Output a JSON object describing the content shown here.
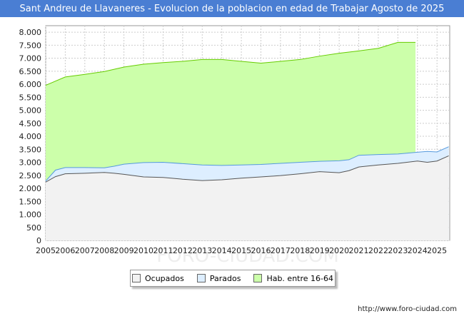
{
  "chart_data": {
    "type": "area",
    "title": "Sant Andreu de Llavaneres - Evolucion de la poblacion en edad de Trabajar Agosto de 2025",
    "xlabel": "",
    "ylabel": "",
    "ylim": [
      0,
      8250
    ],
    "xlim": [
      2005,
      2025.65
    ],
    "y_ticks": [
      0,
      500,
      1000,
      1500,
      2000,
      2500,
      3000,
      3500,
      4000,
      4500,
      5000,
      5500,
      6000,
      6500,
      7000,
      7500,
      8000
    ],
    "y_tick_labels": [
      "0",
      "500",
      "1.000",
      "1.500",
      "2.000",
      "2.500",
      "3.000",
      "3.500",
      "4.000",
      "4.500",
      "5.000",
      "5.500",
      "6.000",
      "6.500",
      "7.000",
      "7.500",
      "8.000"
    ],
    "x_ticks": [
      2005,
      2006,
      2007,
      2008,
      2009,
      2010,
      2011,
      2012,
      2013,
      2014,
      2015,
      2016,
      2017,
      2018,
      2019,
      2020,
      2021,
      2022,
      2023,
      2024,
      2025
    ],
    "x_tick_labels": [
      "2005",
      "2006",
      "2007",
      "2008",
      "2009",
      "2010",
      "2011",
      "2012",
      "2013",
      "2014",
      "2015",
      "2016",
      "2017",
      "2018",
      "2019",
      "2020",
      "2021",
      "2022",
      "2023",
      "2024",
      "2025"
    ],
    "grid": true,
    "legend_position": "bottom",
    "series": [
      {
        "name": "Hab. entre 16-64",
        "color": "#ccffaa",
        "stroke": "#66cc00",
        "x": [
          2005,
          2006,
          2007,
          2008,
          2009,
          2010,
          2011,
          2012,
          2013,
          2014,
          2015,
          2016,
          2017,
          2018,
          2019,
          2020,
          2021,
          2022,
          2023,
          2023.9
        ],
        "values": [
          5960,
          6280,
          6380,
          6490,
          6660,
          6770,
          6830,
          6880,
          6950,
          6950,
          6880,
          6810,
          6880,
          6950,
          7080,
          7190,
          7280,
          7380,
          7610,
          7610
        ]
      },
      {
        "name": "Parados",
        "color": "#ddeeff",
        "stroke": "#5599dd",
        "x": [
          2005,
          2005.5,
          2006,
          2007,
          2008,
          2008.5,
          2009,
          2010,
          2011,
          2012,
          2013,
          2014,
          2015,
          2016,
          2017,
          2018,
          2019,
          2020,
          2020.5,
          2021,
          2022,
          2023,
          2024,
          2024.5,
          2025,
          2025.6
        ],
        "values": [
          2280,
          2700,
          2800,
          2800,
          2790,
          2850,
          2930,
          2990,
          3000,
          2950,
          2900,
          2880,
          2900,
          2920,
          2960,
          3000,
          3040,
          3060,
          3100,
          3270,
          3300,
          3320,
          3390,
          3420,
          3400,
          3600
        ]
      },
      {
        "name": "Ocupados",
        "color": "#f2f2f2",
        "stroke": "#555555",
        "x": [
          2005,
          2005.5,
          2006,
          2007,
          2008,
          2008.5,
          2009,
          2010,
          2011,
          2012,
          2013,
          2014,
          2015,
          2016,
          2017,
          2018,
          2019,
          2020,
          2020.5,
          2021,
          2022,
          2023,
          2024,
          2024.5,
          2025,
          2025.6
        ],
        "values": [
          2240,
          2450,
          2560,
          2580,
          2610,
          2580,
          2540,
          2440,
          2420,
          2350,
          2300,
          2330,
          2390,
          2440,
          2490,
          2560,
          2640,
          2600,
          2680,
          2820,
          2900,
          2960,
          3050,
          3000,
          3050,
          3250
        ]
      }
    ],
    "legend": [
      "Ocupados",
      "Parados",
      "Hab. entre 16-64"
    ],
    "watermark": "FORO-CIUDAD.COM",
    "source": "http://www.foro-ciudad.com"
  }
}
